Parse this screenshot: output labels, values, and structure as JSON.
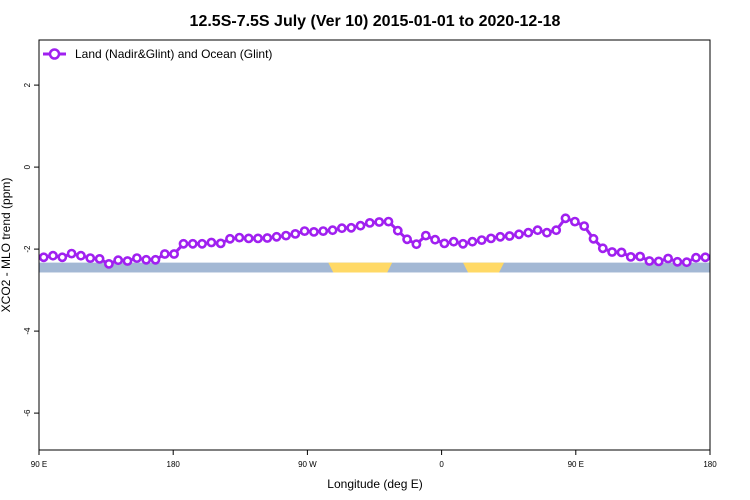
{
  "chart_data": {
    "type": "line",
    "title": "12.5S-7.5S July (Ver 10)   2015-01-01 to 2020-12-18",
    "xlabel": "Longitude (deg E)",
    "ylabel": "XCO2 - MLO trend (ppm)",
    "xlim": [
      90,
      450
    ],
    "ylim": [
      -6.9,
      3.1
    ],
    "x_ticks": [
      {
        "value": 90,
        "label": "90 E"
      },
      {
        "value": 162,
        "label": "180"
      },
      {
        "value": 234,
        "label": "90 W"
      },
      {
        "value": 306,
        "label": "0"
      },
      {
        "value": 378,
        "label": "90 E"
      },
      {
        "value": 450,
        "label": "180"
      }
    ],
    "y_ticks": [
      {
        "value": 2,
        "label": "2"
      },
      {
        "value": 0,
        "label": "0"
      },
      {
        "value": -2,
        "label": "-2"
      },
      {
        "value": -4,
        "label": "-4"
      },
      {
        "value": -6,
        "label": "-6"
      }
    ],
    "grid": false,
    "legend_position": "top-left",
    "colors": {
      "series": "#a020f0",
      "ocean": "#a3b8d4",
      "land": "#ffd966"
    },
    "land_mask": {
      "y_range": [
        -2.57,
        -2.33
      ],
      "land_segments": [
        [
          245.2,
          279.5
        ],
        [
          317.5,
          339.5
        ]
      ]
    },
    "series": [
      {
        "name": "Land (Nadir&Glint) and Ocean (Glint)",
        "x": [
          92.5,
          97.5,
          102.5,
          107.5,
          112.5,
          117.5,
          122.5,
          127.5,
          132.5,
          137.5,
          142.5,
          147.5,
          152.5,
          157.5,
          162.5,
          167.5,
          172.5,
          177.5,
          182.5,
          187.5,
          192.5,
          197.5,
          202.5,
          207.5,
          212.5,
          217.5,
          222.5,
          227.5,
          232.5,
          237.5,
          242.5,
          247.5,
          252.5,
          257.5,
          262.5,
          267.5,
          272.5,
          277.5,
          282.5,
          287.5,
          292.5,
          297.5,
          302.5,
          307.5,
          312.5,
          317.5,
          322.5,
          327.5,
          332.5,
          337.5,
          342.5,
          347.5,
          352.5,
          357.5,
          362.5,
          367.5,
          372.5,
          377.5,
          382.5,
          387.5,
          392.5,
          397.5,
          402.5,
          407.5,
          412.5,
          417.5,
          422.5,
          427.5,
          432.5,
          437.5,
          442.5,
          447.5
        ],
        "values": [
          -2.2,
          -2.16,
          -2.2,
          -2.11,
          -2.16,
          -2.22,
          -2.24,
          -2.36,
          -2.27,
          -2.29,
          -2.22,
          -2.26,
          -2.26,
          -2.12,
          -2.12,
          -1.87,
          -1.87,
          -1.87,
          -1.84,
          -1.86,
          -1.75,
          -1.72,
          -1.74,
          -1.74,
          -1.73,
          -1.7,
          -1.67,
          -1.63,
          -1.56,
          -1.58,
          -1.56,
          -1.54,
          -1.49,
          -1.48,
          -1.43,
          -1.36,
          -1.34,
          -1.33,
          -1.55,
          -1.76,
          -1.88,
          -1.67,
          -1.77,
          -1.86,
          -1.82,
          -1.87,
          -1.82,
          -1.78,
          -1.74,
          -1.7,
          -1.68,
          -1.64,
          -1.6,
          -1.54,
          -1.6,
          -1.54,
          -1.25,
          -1.33,
          -1.44,
          -1.75,
          -1.98,
          -2.07,
          -2.08,
          -2.19,
          -2.18,
          -2.29,
          -2.3,
          -2.23,
          -2.31,
          -2.32,
          -2.21,
          -2.2
        ]
      }
    ]
  }
}
